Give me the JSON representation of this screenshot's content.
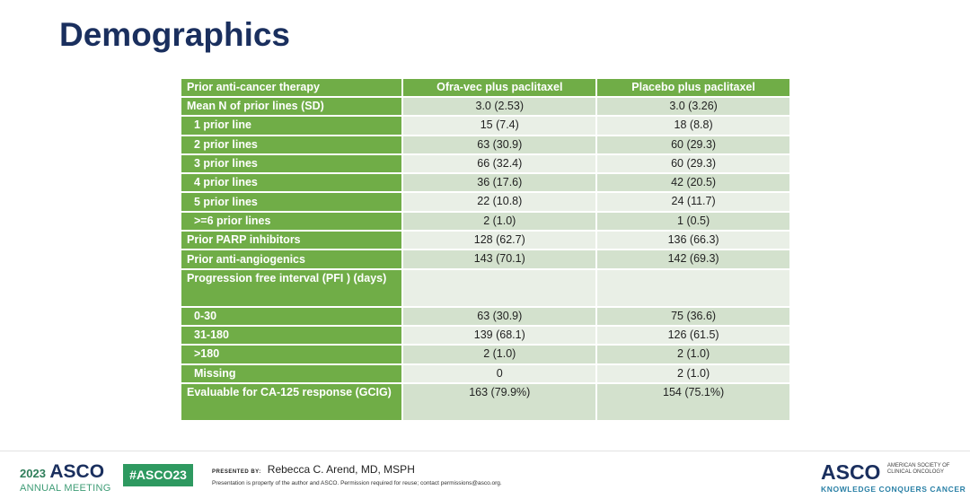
{
  "title": "Demographics",
  "colors": {
    "header_green": "#70ad47",
    "row_light": "#e9efe6",
    "row_dark": "#d3e1cd",
    "title_navy": "#1a2f5e"
  },
  "table": {
    "headers": [
      "Prior anti-cancer therapy",
      "Ofra-vec plus paclitaxel",
      "Placebo plus paclitaxel"
    ],
    "rows": [
      {
        "label": "Mean N of prior lines (SD)",
        "a": "3.0 (2.53)",
        "b": "3.0 (3.26)",
        "indent": false
      },
      {
        "label": "1 prior line",
        "a": "15 (7.4)",
        "b": "18 (8.8)",
        "indent": true
      },
      {
        "label": "2 prior lines",
        "a": "63 (30.9)",
        "b": "60 (29.3)",
        "indent": true
      },
      {
        "label": "3 prior lines",
        "a": "66 (32.4)",
        "b": "60 (29.3)",
        "indent": true
      },
      {
        "label": "4 prior lines",
        "a": "36 (17.6)",
        "b": "42 (20.5)",
        "indent": true
      },
      {
        "label": "5 prior lines",
        "a": "22 (10.8)",
        "b": "24 (11.7)",
        "indent": true
      },
      {
        "label": ">=6 prior lines",
        "a": "2 (1.0)",
        "b": "1 (0.5)",
        "indent": true
      },
      {
        "label": "Prior PARP inhibitors",
        "a": "128 (62.7)",
        "b": "136 (66.3)",
        "indent": false
      },
      {
        "label": "Prior anti-angiogenics",
        "a": "143 (70.1)",
        "b": "142 (69.3)",
        "indent": false
      },
      {
        "label": "Progression free interval (PFI ) (days)",
        "a": "",
        "b": "",
        "indent": false,
        "tall": true
      },
      {
        "label": "0-30",
        "a": "63 (30.9)",
        "b": "75 (36.6)",
        "indent": true
      },
      {
        "label": "31-180",
        "a": "139 (68.1)",
        "b": "126 (61.5)",
        "indent": true
      },
      {
        "label": ">180",
        "a": "2 (1.0)",
        "b": "2 (1.0)",
        "indent": true
      },
      {
        "label": "Missing",
        "a": "0",
        "b": "2 (1.0)",
        "indent": true
      },
      {
        "label": "Evaluable for CA-125 response (GCIG)",
        "a": "163 (79.9%)",
        "b": "154 (75.1%)",
        "indent": false,
        "tall": true
      }
    ]
  },
  "footer": {
    "year": "2023",
    "asco": "ASCO",
    "annual_meeting": "ANNUAL MEETING",
    "hashtag": "#ASCO23",
    "presented_by": "PRESENTED BY:",
    "presenter": "Rebecca C. Arend, MD, MSPH",
    "note": "Presentation is property of the author and ASCO. Permission required for reuse; contact permissions@asco.org.",
    "society": "AMERICAN SOCIETY OF CLINICAL ONCOLOGY",
    "tagline": "KNOWLEDGE CONQUERS CANCER"
  }
}
